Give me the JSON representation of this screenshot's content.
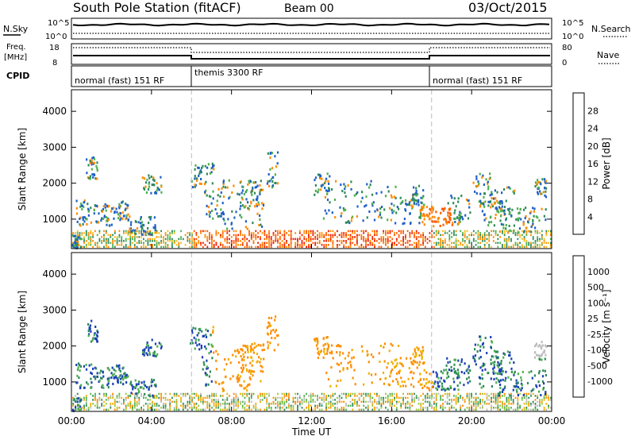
{
  "header": {
    "title": "South Pole Station (fitACF)",
    "beam": "Beam 00",
    "date": "03/Oct/2015"
  },
  "status_panels": {
    "nsky_label": "N.Sky",
    "noise_ticks_left": [
      "10^5",
      "10^0"
    ],
    "noise_ticks_right": [
      "10^5",
      "10^0"
    ],
    "nsearch_label": "N.Search",
    "freq_label_1": "Freq.",
    "freq_label_2": "[MHz]",
    "freq_ticks": [
      "18",
      "8"
    ],
    "nave_ticks": [
      "80",
      "0"
    ],
    "nave_label": "Nave",
    "cpid_label": "CPID",
    "cpid_segments": [
      {
        "label": "normal (fast) 151 RF",
        "start": 0,
        "end": 6
      },
      {
        "label": "themis 3300 RF",
        "start": 6,
        "end": 18
      },
      {
        "label": "normal (fast) 151 RF",
        "start": 18,
        "end": 24
      }
    ]
  },
  "chart_data": [
    {
      "type": "heatmap",
      "name": "Power",
      "ylabel": "Slant Range [km]",
      "ylim": [
        180,
        4600
      ],
      "yticks": [
        "1000",
        "2000",
        "3000",
        "4000"
      ],
      "xlim": [
        0,
        24
      ],
      "colorbar": {
        "label": "Power [dB]",
        "ticks": [
          "4",
          "8",
          "12",
          "16",
          "20",
          "24",
          "28"
        ],
        "colors": [
          "#1a1aff",
          "#1f5fc8",
          "#2e8b57",
          "#4fb04f",
          "#f0c020",
          "#ff8c00",
          "#ff5a00",
          "#ee1a00"
        ]
      }
    },
    {
      "type": "heatmap",
      "name": "Velocity",
      "ylabel": "Slant Range [km]",
      "ylim": [
        180,
        4600
      ],
      "yticks": [
        "1000",
        "2000",
        "3000",
        "4000"
      ],
      "xlim": [
        0,
        24
      ],
      "xlabel": "Time UT",
      "xticks": [
        "00:00",
        "04:00",
        "08:00",
        "12:00",
        "16:00",
        "20:00",
        "00:00"
      ],
      "colorbar": {
        "label": "Velocity [m s⁻¹]",
        "ticks": [
          "1000",
          "500",
          "100",
          "25",
          "-25",
          "-100",
          "-500",
          "-1000"
        ],
        "colors": [
          "#1a3fb8",
          "#2e8b57",
          "#4fb04f",
          "#9ac840",
          "#bdbdbd",
          "#f0b000",
          "#ff8c00",
          "#ff4000",
          "#ee0000"
        ]
      }
    }
  ]
}
